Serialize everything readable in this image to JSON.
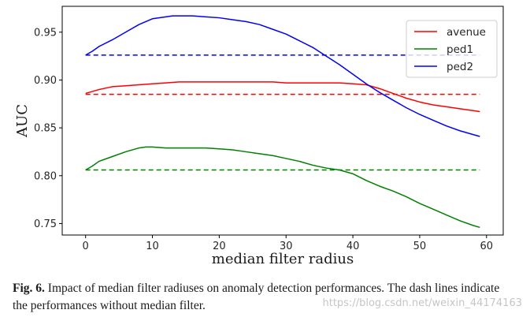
{
  "chart_data": {
    "type": "line",
    "xlabel": "median filter radius",
    "ylabel": "AUC",
    "xlim": [
      -3.5,
      62.5
    ],
    "ylim": [
      0.738,
      0.977
    ],
    "xticks": [
      0,
      10,
      20,
      30,
      40,
      50,
      60
    ],
    "yticks": [
      0.75,
      0.8,
      0.85,
      0.9,
      0.95
    ],
    "ytick_labels": [
      "0.75",
      "0.80",
      "0.85",
      "0.90",
      "0.95"
    ],
    "grid": false,
    "legend_position": "top-right",
    "series": [
      {
        "name": "avenue",
        "color": "#ff0000",
        "x": [
          0,
          2,
          4,
          6,
          8,
          10,
          12,
          14,
          16,
          18,
          20,
          22,
          24,
          26,
          28,
          30,
          32,
          34,
          36,
          38,
          40,
          42,
          44,
          46,
          48,
          50,
          52,
          54,
          56,
          58,
          59
        ],
        "y": [
          0.886,
          0.89,
          0.893,
          0.894,
          0.895,
          0.896,
          0.897,
          0.898,
          0.898,
          0.898,
          0.898,
          0.898,
          0.898,
          0.898,
          0.898,
          0.897,
          0.897,
          0.897,
          0.897,
          0.897,
          0.896,
          0.895,
          0.891,
          0.886,
          0.881,
          0.877,
          0.874,
          0.872,
          0.87,
          0.868,
          0.867
        ],
        "baseline": 0.885
      },
      {
        "name": "ped1",
        "color": "#008000",
        "x": [
          0,
          1,
          2,
          4,
          6,
          8,
          9,
          10,
          12,
          14,
          16,
          18,
          20,
          22,
          24,
          26,
          28,
          30,
          32,
          34,
          36,
          38,
          40,
          42,
          44,
          46,
          48,
          50,
          52,
          54,
          56,
          58,
          59
        ],
        "y": [
          0.806,
          0.81,
          0.815,
          0.82,
          0.825,
          0.829,
          0.83,
          0.83,
          0.829,
          0.829,
          0.829,
          0.829,
          0.828,
          0.827,
          0.825,
          0.823,
          0.821,
          0.818,
          0.815,
          0.811,
          0.808,
          0.806,
          0.802,
          0.795,
          0.789,
          0.784,
          0.778,
          0.771,
          0.765,
          0.759,
          0.753,
          0.748,
          0.746
        ],
        "baseline": 0.806
      },
      {
        "name": "ped2",
        "color": "#0000ff",
        "x": [
          0,
          1,
          2,
          4,
          6,
          8,
          10,
          12,
          13,
          14,
          16,
          18,
          20,
          22,
          24,
          26,
          28,
          30,
          32,
          34,
          36,
          38,
          40,
          42,
          44,
          46,
          48,
          50,
          52,
          54,
          56,
          58,
          59
        ],
        "y": [
          0.926,
          0.93,
          0.935,
          0.942,
          0.95,
          0.958,
          0.964,
          0.966,
          0.967,
          0.967,
          0.967,
          0.966,
          0.965,
          0.963,
          0.961,
          0.958,
          0.953,
          0.948,
          0.941,
          0.934,
          0.925,
          0.916,
          0.906,
          0.896,
          0.887,
          0.879,
          0.871,
          0.864,
          0.858,
          0.852,
          0.847,
          0.843,
          0.841
        ],
        "baseline": 0.926
      }
    ]
  },
  "caption": {
    "label": "Fig. 6.",
    "text": "Impact of median filter radiuses on anomaly detection performances. The dash lines indicate the performances without median filter."
  },
  "watermark": "https://blog.csdn.net/weixin_44174163"
}
